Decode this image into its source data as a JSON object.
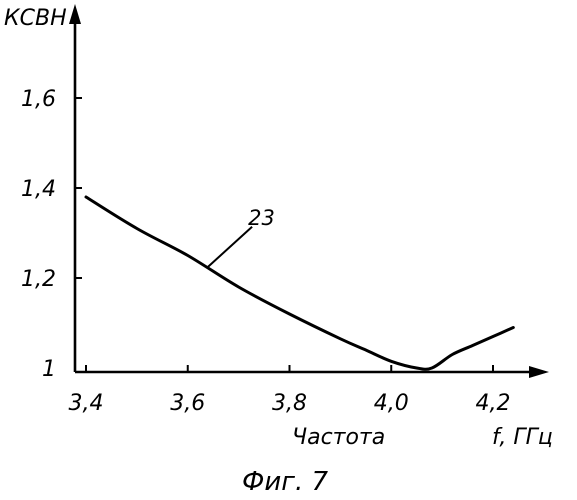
{
  "chart_data": {
    "type": "line",
    "ylabel": "КСВН",
    "xlabel": "Частота",
    "xunit": "f, ГГц",
    "caption": "Фиг. 7",
    "xlim": [
      3.4,
      4.25
    ],
    "ylim": [
      1.0,
      1.8
    ],
    "x_ticks": [
      3.4,
      3.6,
      3.8,
      4.0,
      4.2
    ],
    "x_tick_labels": [
      "3,4",
      "3,6",
      "3,8",
      "4,0",
      "4,2"
    ],
    "y_ticks": [
      1.0,
      1.2,
      1.4,
      1.6
    ],
    "y_tick_labels": [
      "1",
      "1,2",
      "1,4",
      "1,6"
    ],
    "series": [
      {
        "name": "23",
        "x": [
          3.4,
          3.5,
          3.6,
          3.7,
          3.8,
          3.9,
          3.95,
          4.0,
          4.05,
          4.08,
          4.12,
          4.16,
          4.2,
          4.24
        ],
        "y": [
          1.38,
          1.31,
          1.25,
          1.18,
          1.12,
          1.065,
          1.04,
          1.015,
          1.0,
          1.0,
          1.03,
          1.05,
          1.07,
          1.09
        ]
      }
    ],
    "curve_annotation": "23",
    "grid": false,
    "line_color": "#000000"
  }
}
